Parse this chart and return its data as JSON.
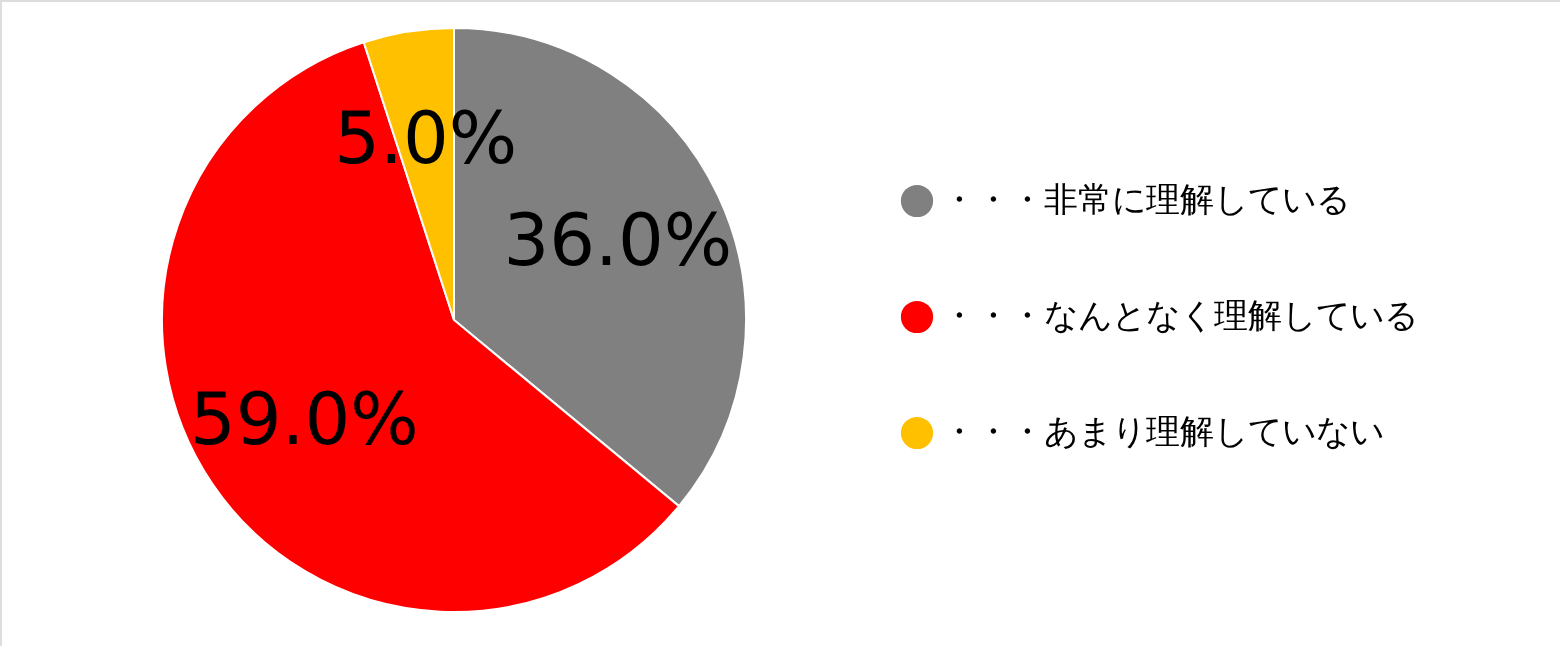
{
  "chart_data": {
    "type": "pie",
    "categories": [
      "・・・非常に理解している",
      "・・・なんとなく理解している",
      "・・・あまり理解していない"
    ],
    "values": [
      36.0,
      59.0,
      5.0
    ],
    "colors": [
      "#808080",
      "#ff0000",
      "#ffc000"
    ],
    "value_labels": [
      "36.0%",
      "59.0%",
      "5.0%"
    ],
    "legend": "right"
  }
}
